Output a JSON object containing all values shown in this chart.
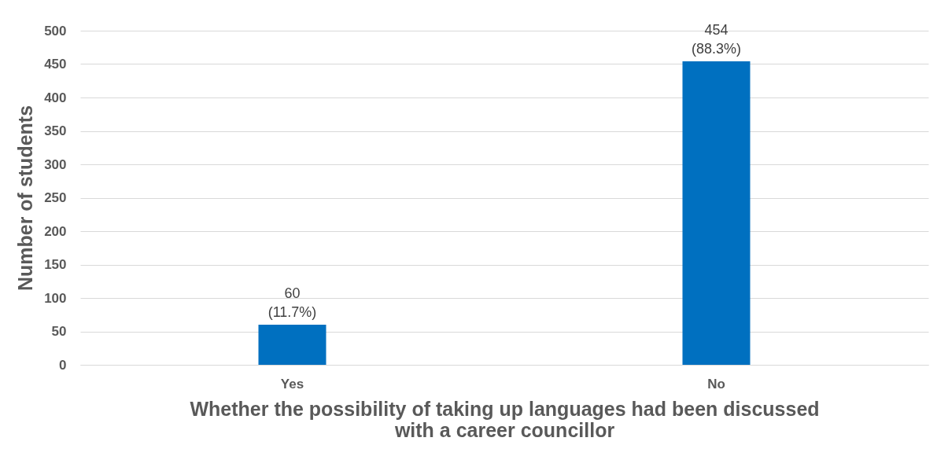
{
  "chart_data": {
    "type": "bar",
    "categories": [
      "Yes",
      "No"
    ],
    "values": [
      60,
      454
    ],
    "color": "#0070c0",
    "value_labels": [
      "60\n(11.7%)",
      "454\n(88.3%)"
    ],
    "xlabel": "Whether the possibility of taking up languages had been discussed\nwith a career councillor",
    "ylabel": "Number of students",
    "ylim": [
      0,
      500
    ],
    "yticks": [
      0,
      50,
      100,
      150,
      200,
      250,
      300,
      350,
      400,
      450,
      500
    ],
    "grid": "y"
  }
}
